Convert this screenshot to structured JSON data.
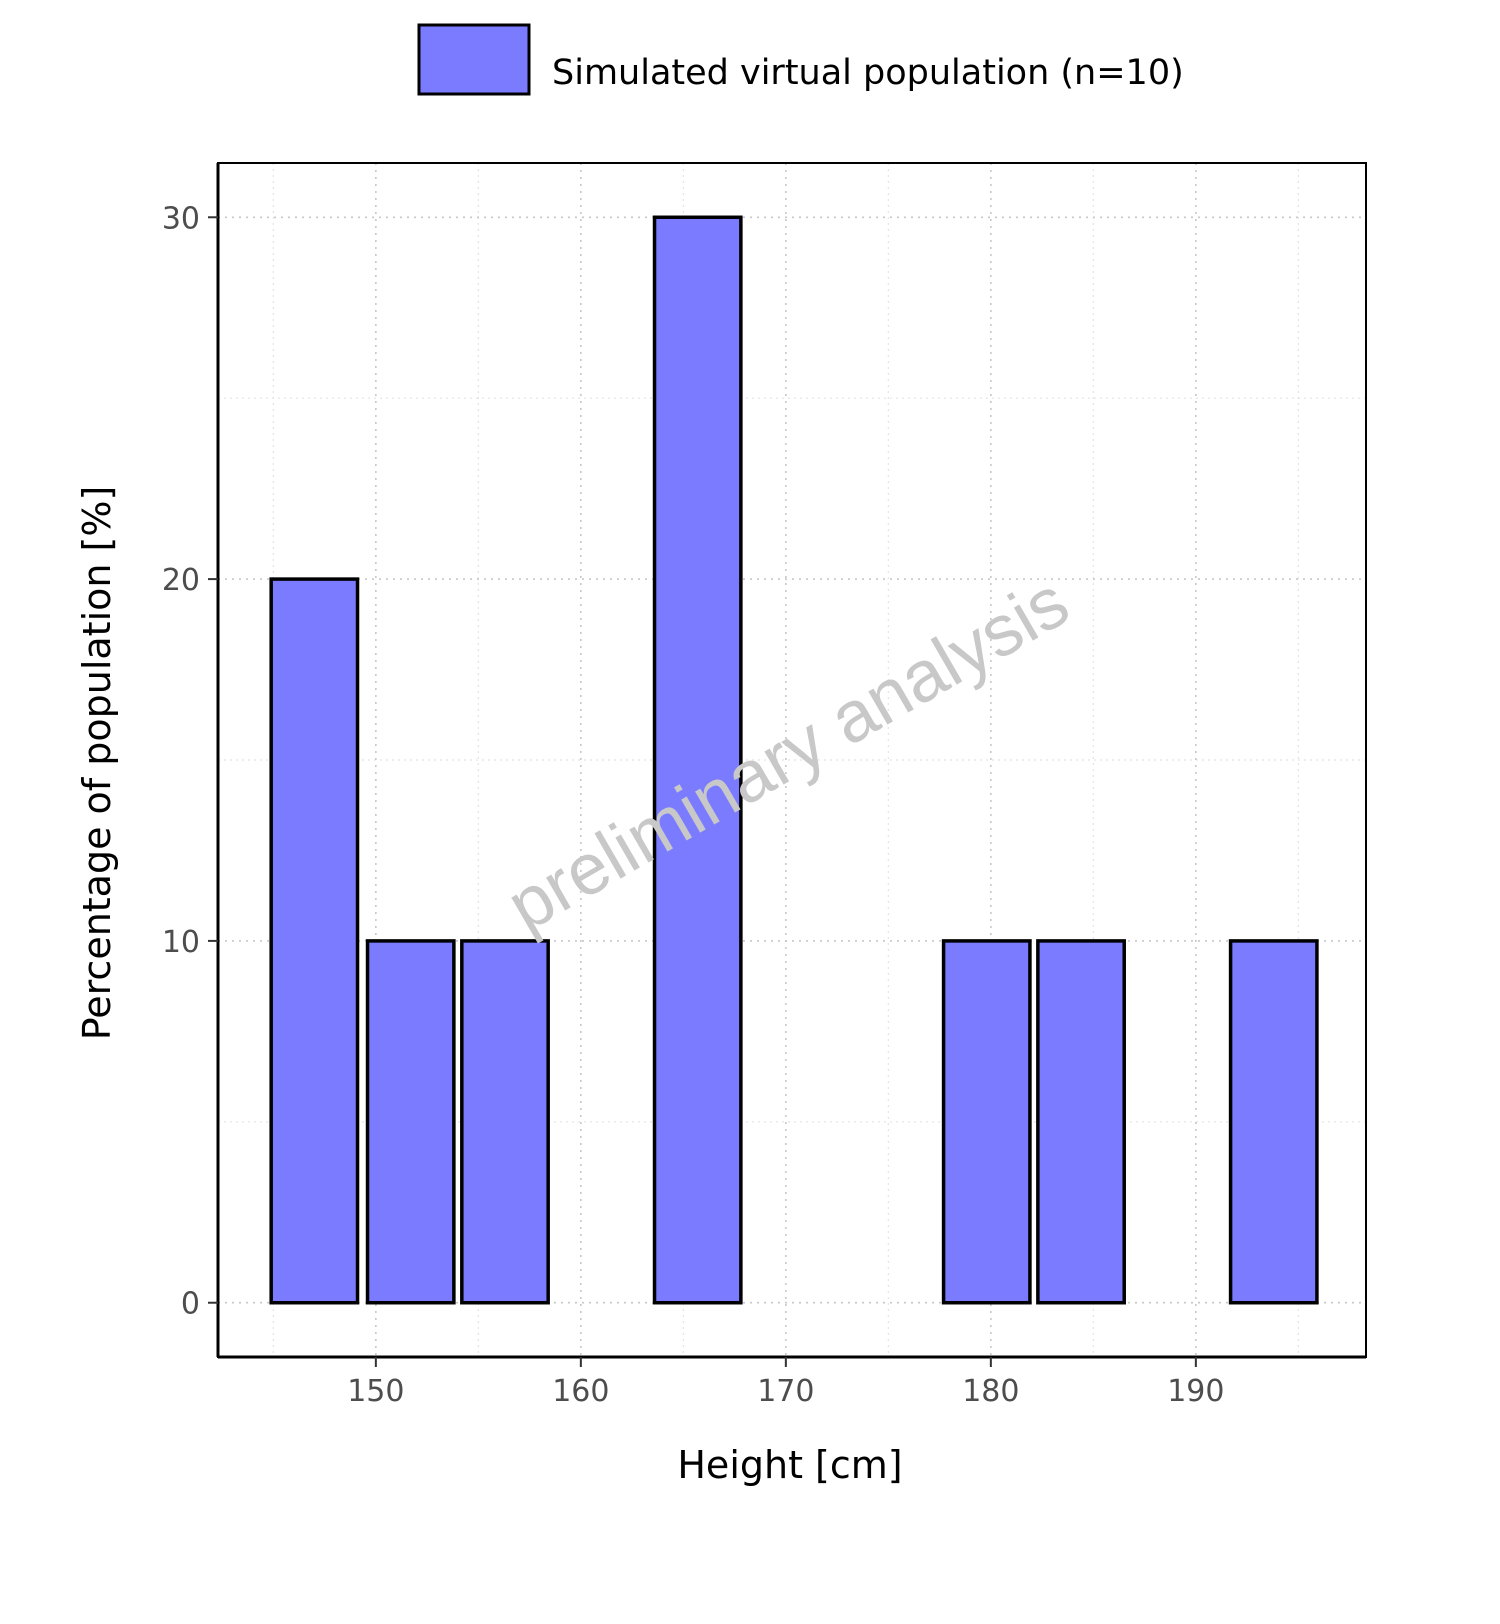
{
  "chart_data": {
    "type": "bar",
    "title": "",
    "xlabel": "Height [cm]",
    "ylabel": "Percentage of population [%]",
    "xlim": [
      142.3,
      198.3
    ],
    "ylim": [
      -1.5,
      31.5
    ],
    "xticks": [
      150,
      160,
      170,
      180,
      190
    ],
    "yticks": [
      0,
      10,
      20,
      30
    ],
    "xtick_labels": [
      "150",
      "160",
      "170",
      "180",
      "190"
    ],
    "ytick_labels": [
      "0",
      "10",
      "20",
      "30"
    ],
    "grid": true,
    "bin_width": 4.68,
    "bin_centers": [
      147.0,
      151.7,
      156.3,
      161.0,
      165.7,
      170.4,
      175.1,
      179.8,
      184.4,
      189.1,
      193.8
    ],
    "series": [
      {
        "name": "Simulated virtual population (n=10)",
        "values": [
          20,
          10,
          10,
          0,
          30,
          0,
          0,
          10,
          10,
          0,
          10
        ],
        "color": "#7b7bff"
      }
    ],
    "legend": {
      "label": "Simulated virtual population (n=10)",
      "position": "top"
    },
    "watermark": "preliminary analysis"
  }
}
